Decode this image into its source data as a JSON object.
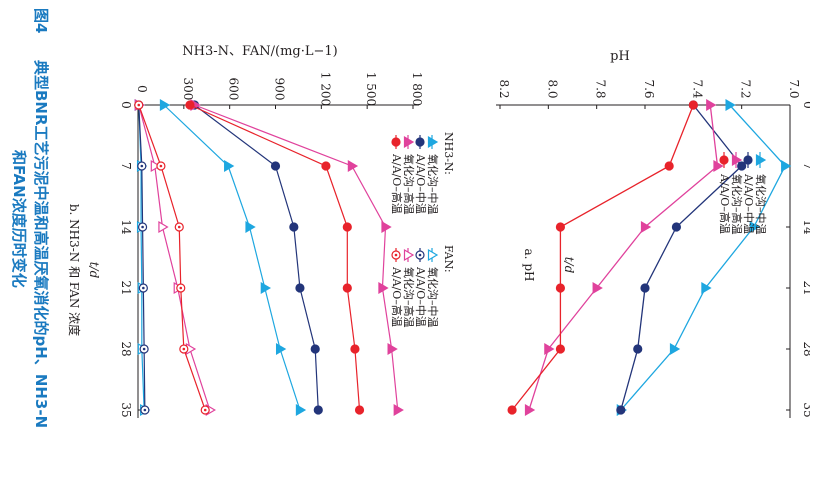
{
  "figure": {
    "number": "图4",
    "title_line1": "典型BNR工艺污泥中温和高温厌氧消化的pH、NH3-N",
    "title_line2": "和FAN浓度历时变化",
    "color": "#1a7ac0"
  },
  "chart_data": [
    {
      "id": "a",
      "type": "line",
      "panel_label": "a. pH",
      "xlabel": "t/d",
      "ylabel": "pH",
      "x": [
        0,
        7,
        14,
        21,
        28,
        35
      ],
      "x_ticks": [
        "0",
        "7",
        "14",
        "21",
        "28",
        "35"
      ],
      "ylim": [
        7.0,
        8.2
      ],
      "y_ticks": [
        "7.0",
        "7.2",
        "7.4",
        "7.6",
        "7.8",
        "8.0",
        "8.2"
      ],
      "legend_position": "bottom-left",
      "series": [
        {
          "name": "氧化沟–中温",
          "color": "#1ea7e0",
          "marker": "triangle",
          "values": [
            7.25,
            7.02,
            7.15,
            7.35,
            7.48,
            7.7
          ]
        },
        {
          "name": "A/A/O–中温",
          "color": "#23357a",
          "marker": "circle",
          "values": [
            7.4,
            7.2,
            7.47,
            7.6,
            7.63,
            7.7
          ]
        },
        {
          "name": "氧化沟–高温",
          "color": "#e0429c",
          "marker": "triangle",
          "values": [
            7.33,
            7.3,
            7.6,
            7.8,
            8.0,
            8.08
          ]
        },
        {
          "name": "A/A/O–高温",
          "color": "#e8232b",
          "marker": "circle",
          "values": [
            7.4,
            7.5,
            7.95,
            7.95,
            7.95,
            8.15
          ]
        }
      ]
    },
    {
      "id": "b",
      "type": "line",
      "panel_label": "b. NH3-N 和 FAN 浓度",
      "xlabel": "t/d",
      "ylabel": "NH3-N、FAN/(mg·L−1)",
      "x": [
        0,
        7,
        14,
        21,
        28,
        35
      ],
      "x_ticks": [
        "0",
        "7",
        "14",
        "21",
        "28",
        "35"
      ],
      "ylim": [
        0,
        1800
      ],
      "y_ticks": [
        "0",
        "300",
        "600",
        "900",
        "1 200",
        "1 500",
        "1 800"
      ],
      "legend_position": "bottom-left",
      "legend_groups": [
        {
          "title": "NH3-N:",
          "entries": [
            "氧化沟–中温",
            "A/A/O–中温",
            "氧化沟–高温",
            "A/A/O–高温"
          ]
        },
        {
          "title": "FAN:",
          "entries": [
            "氧化沟–中温",
            "A/A/O–中温",
            "氧化沟–高温",
            "A/A/O–高温"
          ]
        }
      ],
      "series": [
        {
          "name": "NH3-N 氧化沟–中温",
          "color": "#1ea7e0",
          "marker": "triangle",
          "fill": true,
          "values": [
            170,
            590,
            730,
            830,
            930,
            1060
          ]
        },
        {
          "name": "NH3-N A/A/O–中温",
          "color": "#23357a",
          "marker": "circle",
          "fill": true,
          "values": [
            370,
            900,
            1020,
            1060,
            1160,
            1180
          ]
        },
        {
          "name": "NH3-N 氧化沟–高温",
          "color": "#e0429c",
          "marker": "triangle",
          "fill": true,
          "values": [
            370,
            1400,
            1620,
            1600,
            1660,
            1700
          ]
        },
        {
          "name": "NH3-N A/A/O–高温",
          "color": "#e8232b",
          "marker": "circle",
          "fill": true,
          "values": [
            340,
            1230,
            1370,
            1370,
            1420,
            1450
          ]
        },
        {
          "name": "FAN 氧化沟–中温",
          "color": "#1ea7e0",
          "marker": "triangle",
          "fill": false,
          "values": [
            5,
            20,
            20,
            25,
            25,
            40
          ]
        },
        {
          "name": "FAN A/A/O–中温",
          "color": "#23357a",
          "marker": "circle",
          "fill": false,
          "values": [
            5,
            25,
            30,
            35,
            40,
            45
          ]
        },
        {
          "name": "FAN 氧化沟–高温",
          "color": "#e0429c",
          "marker": "triangle",
          "fill": false,
          "values": [
            5,
            110,
            160,
            260,
            340,
            470
          ]
        },
        {
          "name": "FAN A/A/O–高温",
          "color": "#e8232b",
          "marker": "circle",
          "fill": false,
          "values": [
            5,
            150,
            270,
            280,
            300,
            440
          ]
        }
      ]
    }
  ]
}
